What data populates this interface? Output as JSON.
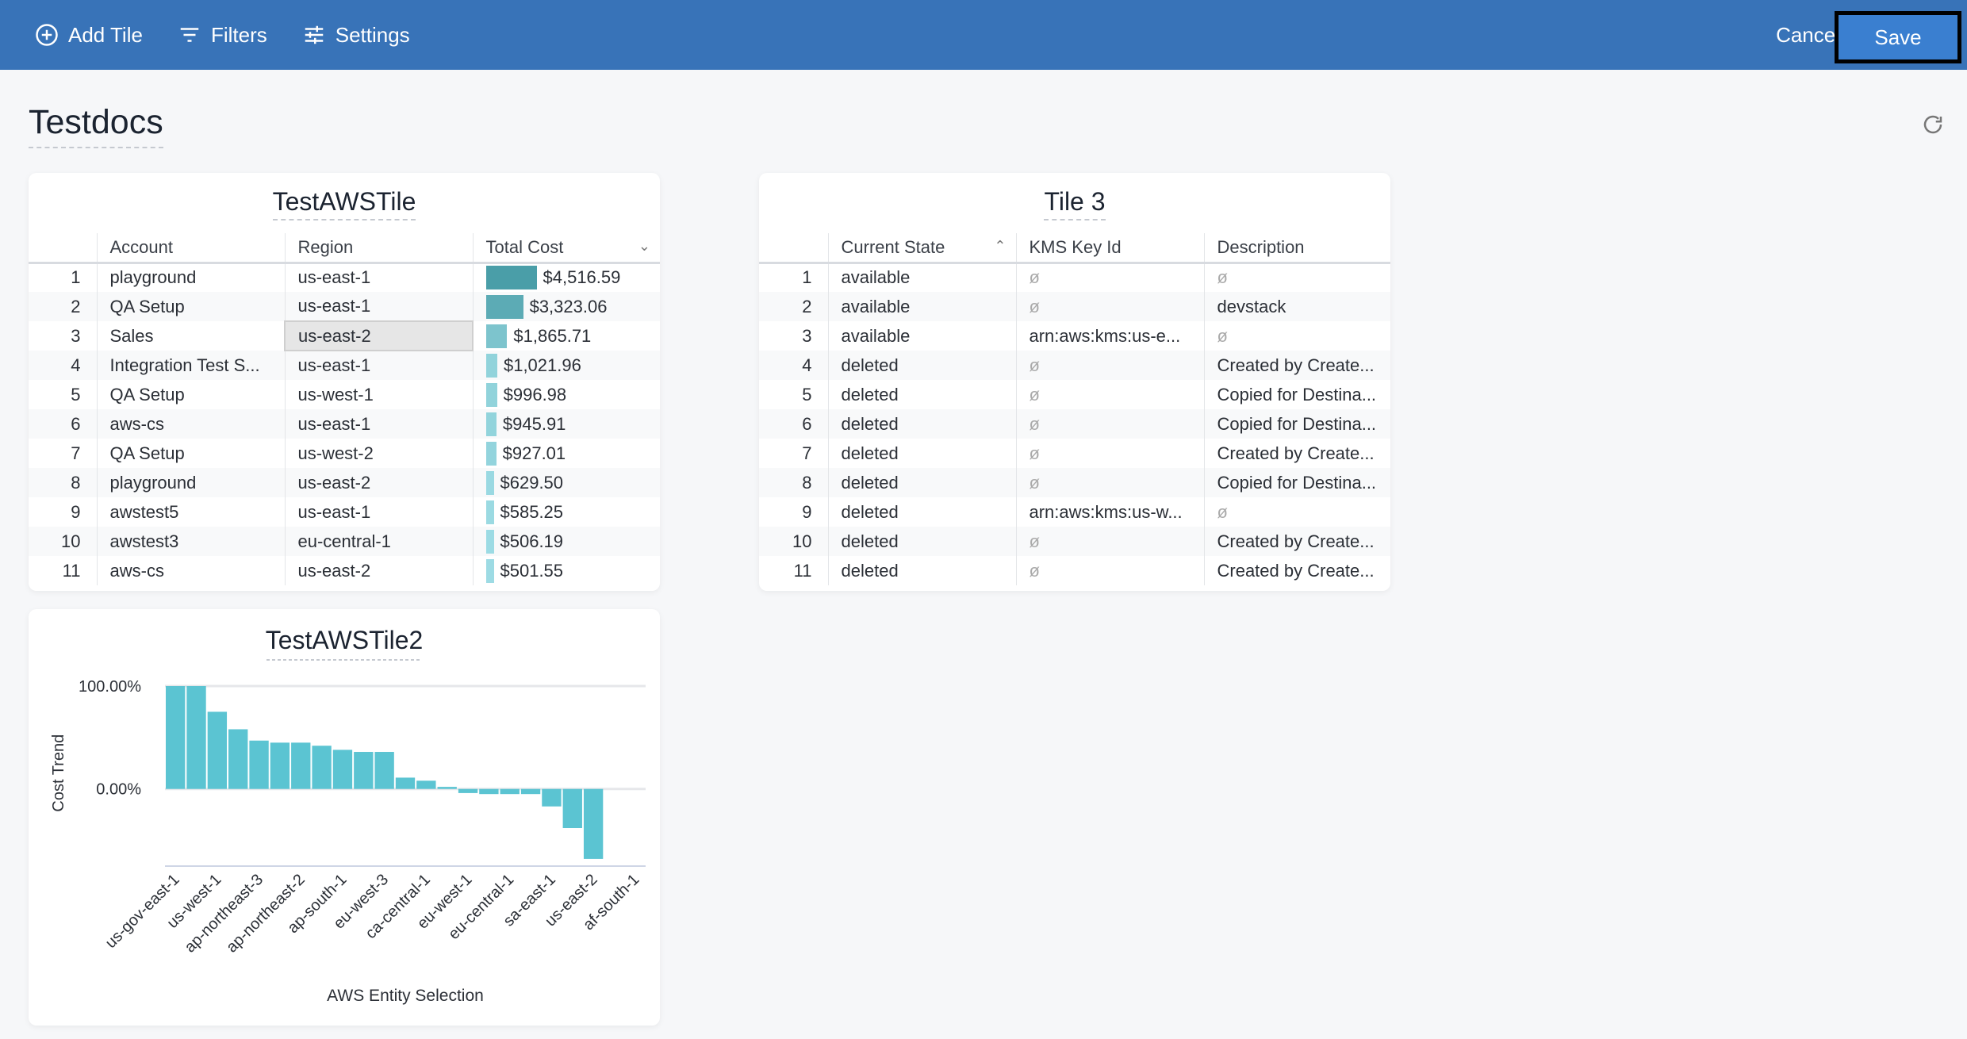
{
  "toolbar": {
    "add_tile": "Add Tile",
    "filters": "Filters",
    "settings": "Settings",
    "cancel": "Cancel",
    "save": "Save"
  },
  "page": {
    "title": "Testdocs"
  },
  "tile1": {
    "title": "TestAWSTile",
    "columns": [
      "Account",
      "Region",
      "Total Cost"
    ],
    "rows": [
      {
        "n": "1",
        "account": "playground",
        "region": "us-east-1",
        "cost": "$4,516.59",
        "value": 4516.59
      },
      {
        "n": "2",
        "account": "QA Setup",
        "region": "us-east-1",
        "cost": "$3,323.06",
        "value": 3323.06
      },
      {
        "n": "3",
        "account": "Sales",
        "region": "us-east-2",
        "cost": "$1,865.71",
        "value": 1865.71
      },
      {
        "n": "4",
        "account": "Integration Test S...",
        "region": "us-east-1",
        "cost": "$1,021.96",
        "value": 1021.96
      },
      {
        "n": "5",
        "account": "QA Setup",
        "region": "us-west-1",
        "cost": "$996.98",
        "value": 996.98
      },
      {
        "n": "6",
        "account": "aws-cs",
        "region": "us-east-1",
        "cost": "$945.91",
        "value": 945.91
      },
      {
        "n": "7",
        "account": "QA Setup",
        "region": "us-west-2",
        "cost": "$927.01",
        "value": 927.01
      },
      {
        "n": "8",
        "account": "playground",
        "region": "us-east-2",
        "cost": "$629.50",
        "value": 629.5
      },
      {
        "n": "9",
        "account": "awstest5",
        "region": "us-east-1",
        "cost": "$585.25",
        "value": 585.25
      },
      {
        "n": "10",
        "account": "awstest3",
        "region": "eu-central-1",
        "cost": "$506.19",
        "value": 506.19
      },
      {
        "n": "11",
        "account": "aws-cs",
        "region": "us-east-2",
        "cost": "$501.55",
        "value": 501.55
      }
    ]
  },
  "tile3": {
    "title": "Tile 3",
    "columns": [
      "Current State",
      "KMS Key Id",
      "Description"
    ],
    "null_symbol": "ø",
    "rows": [
      {
        "n": "1",
        "state": "available",
        "kms": null,
        "desc": null
      },
      {
        "n": "2",
        "state": "available",
        "kms": null,
        "desc": "devstack"
      },
      {
        "n": "3",
        "state": "available",
        "kms": "arn:aws:kms:us-e...",
        "desc": null
      },
      {
        "n": "4",
        "state": "deleted",
        "kms": null,
        "desc": "Created by Create..."
      },
      {
        "n": "5",
        "state": "deleted",
        "kms": null,
        "desc": "Copied for Destina..."
      },
      {
        "n": "6",
        "state": "deleted",
        "kms": null,
        "desc": "Copied for Destina..."
      },
      {
        "n": "7",
        "state": "deleted",
        "kms": null,
        "desc": "Created by Create..."
      },
      {
        "n": "8",
        "state": "deleted",
        "kms": null,
        "desc": "Copied for Destina..."
      },
      {
        "n": "9",
        "state": "deleted",
        "kms": "arn:aws:kms:us-w...",
        "desc": null
      },
      {
        "n": "10",
        "state": "deleted",
        "kms": null,
        "desc": "Created by Create..."
      },
      {
        "n": "11",
        "state": "deleted",
        "kms": null,
        "desc": "Created by Create..."
      }
    ]
  },
  "chart_data": {
    "type": "bar",
    "title": "TestAWSTile2",
    "xlabel": "AWS Entity Selection",
    "ylabel": "Cost Trend",
    "ylim": [
      -75,
      100
    ],
    "yticks": [
      "100.00%",
      "0.00%"
    ],
    "ytick_values": [
      100,
      0
    ],
    "grid": true,
    "color": "#5bc4d2",
    "categories": [
      "us-gov-east-1",
      "",
      "us-west-1",
      "",
      "ap-northeast-3",
      "",
      "ap-northeast-2",
      "",
      "ap-south-1",
      "",
      "eu-west-3",
      "",
      "ca-central-1",
      "",
      "eu-west-1",
      "",
      "eu-central-1",
      "",
      "sa-east-1",
      "",
      "us-east-2",
      "",
      "af-south-1"
    ],
    "values": [
      100,
      100,
      75,
      58,
      47,
      45,
      45,
      42,
      38,
      36,
      36,
      11,
      8,
      2,
      -4,
      -5,
      -5,
      -5,
      -17,
      -38,
      -68,
      null,
      null
    ]
  }
}
